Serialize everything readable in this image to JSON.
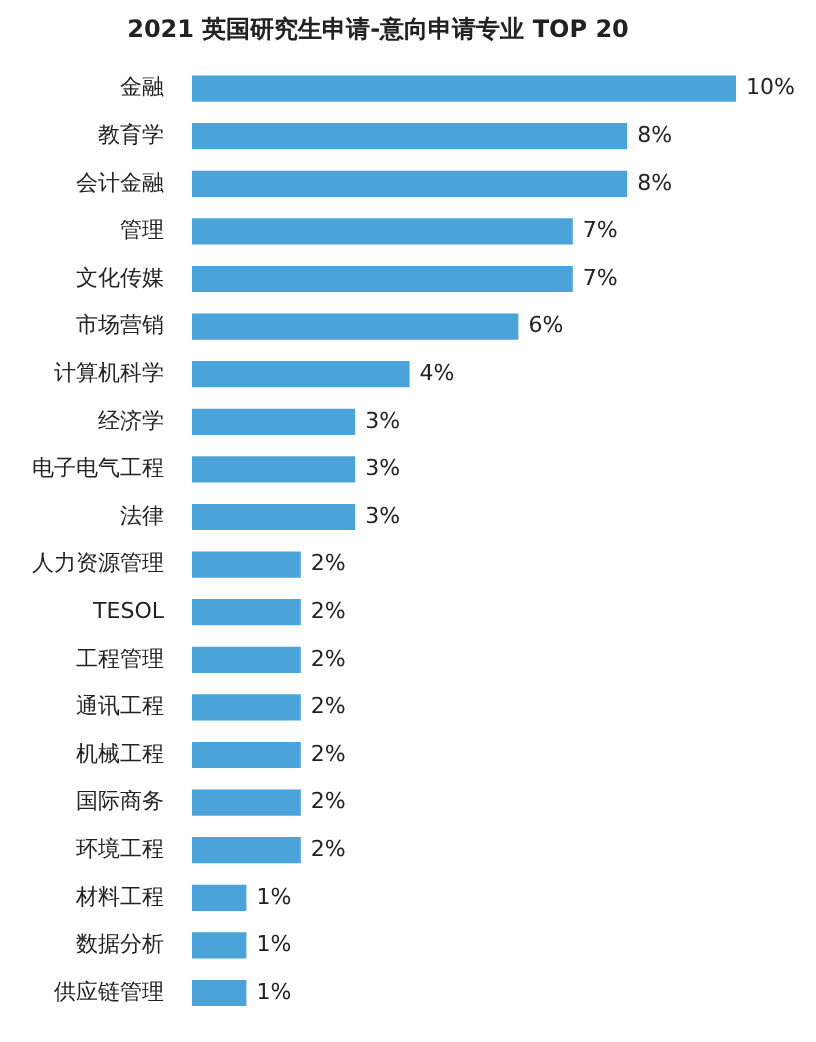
{
  "chart_data": {
    "type": "bar",
    "orientation": "horizontal",
    "title": "2021 英国研究生申请-意向申请专业 TOP 20",
    "categories": [
      "金融",
      "教育学",
      "会计金融",
      "管理",
      "文化传媒",
      "市场营销",
      "计算机科学",
      "经济学",
      "电子电气工程",
      "法律",
      "人力资源管理",
      "TESOL",
      "工程管理",
      "通讯工程",
      "机械工程",
      "国际商务",
      "环境工程",
      "材料工程",
      "数据分析",
      "供应链管理"
    ],
    "values": [
      10,
      8,
      8,
      7,
      7,
      6,
      4,
      3,
      3,
      3,
      2,
      2,
      2,
      2,
      2,
      2,
      2,
      1,
      1,
      1
    ],
    "value_labels": [
      "10%",
      "8%",
      "8%",
      "7%",
      "7%",
      "6%",
      "4%",
      "3%",
      "3%",
      "3%",
      "2%",
      "2%",
      "2%",
      "2%",
      "2%",
      "2%",
      "2%",
      "1%",
      "1%",
      "1%"
    ],
    "color": "#4aa3d9",
    "xlim": [
      0,
      10
    ],
    "tick_labels": "y",
    "grid": false,
    "legend": false
  }
}
